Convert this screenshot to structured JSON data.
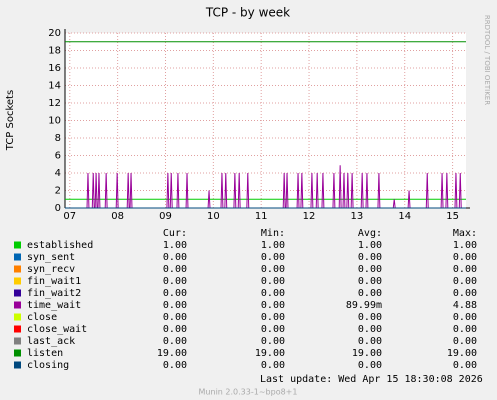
{
  "chart_data": {
    "type": "line",
    "title": "TCP - by week",
    "y_label": "TCP Sockets",
    "side_text": "RRDTOOL / TOBI OETIKER",
    "xlim": [
      6.9,
      15.28
    ],
    "ylim": [
      0,
      20
    ],
    "xticks": [
      {
        "value": 7,
        "label": "07"
      },
      {
        "value": 8,
        "label": "08"
      },
      {
        "value": 9,
        "label": "09"
      },
      {
        "value": 10,
        "label": "10"
      },
      {
        "value": 11,
        "label": "11"
      },
      {
        "value": 12,
        "label": "12"
      },
      {
        "value": 13,
        "label": "13"
      },
      {
        "value": 14,
        "label": "14"
      },
      {
        "value": 15,
        "label": "15"
      }
    ],
    "yticks": [
      0,
      2,
      4,
      6,
      8,
      10,
      12,
      14,
      16,
      18,
      20
    ],
    "grid": true,
    "series": [
      {
        "name": "established",
        "color": "#00cc00",
        "x": [
          6.9,
          15.28
        ],
        "values": [
          1,
          1
        ]
      },
      {
        "name": "syn_sent",
        "color": "#0066b3",
        "x": [
          6.9,
          15.28
        ],
        "values": [
          0,
          0
        ]
      },
      {
        "name": "syn_recv",
        "color": "#ff8000",
        "x": [
          6.9,
          15.28
        ],
        "values": [
          0,
          0
        ]
      },
      {
        "name": "fin_wait1",
        "color": "#ffcc00",
        "x": [
          6.9,
          15.28
        ],
        "values": [
          0,
          0
        ]
      },
      {
        "name": "fin_wait2",
        "color": "#330099",
        "x": [
          6.9,
          15.28
        ],
        "values": [
          0,
          0
        ]
      },
      {
        "name": "time_wait",
        "color": "#990099",
        "x": [
          6.9,
          7.36,
          7.38,
          7.4,
          7.47,
          7.49,
          7.51,
          7.53,
          7.55,
          7.57,
          7.59,
          7.61,
          7.63,
          7.74,
          7.76,
          7.78,
          7.97,
          7.99,
          8.01,
          8.2,
          8.22,
          8.24,
          8.26,
          8.28,
          8.3,
          9.03,
          9.05,
          9.07,
          9.1,
          9.12,
          9.14,
          9.24,
          9.26,
          9.28,
          9.43,
          9.45,
          9.47,
          9.89,
          9.91,
          9.93,
          10.16,
          10.18,
          10.2,
          10.24,
          10.26,
          10.28,
          10.43,
          10.45,
          10.47,
          10.52,
          10.54,
          10.56,
          10.7,
          10.72,
          10.74,
          11.46,
          11.48,
          11.5,
          11.52,
          11.54,
          11.56,
          11.75,
          11.77,
          11.79,
          11.83,
          11.85,
          11.87,
          12.04,
          12.06,
          12.08,
          12.15,
          12.17,
          12.19,
          12.27,
          12.29,
          12.31,
          12.5,
          12.52,
          12.54,
          12.63,
          12.65,
          12.67,
          12.71,
          12.73,
          12.75,
          12.79,
          12.81,
          12.83,
          12.88,
          12.9,
          12.92,
          13.09,
          13.11,
          13.13,
          13.19,
          13.21,
          13.23,
          13.44,
          13.46,
          13.48,
          13.76,
          13.78,
          13.8,
          14.07,
          14.09,
          14.11,
          14.45,
          14.47,
          14.49,
          14.76,
          14.78,
          14.8,
          14.86,
          14.88,
          14.9,
          15.05,
          15.07,
          15.09,
          15.14,
          15.16,
          15.18,
          15.28
        ],
        "values": [
          0,
          0,
          4,
          0,
          0,
          4,
          0,
          0,
          4,
          0,
          0,
          4,
          0,
          0,
          4,
          0,
          0,
          4,
          0,
          0,
          4,
          0,
          0,
          4,
          0,
          0,
          4,
          0,
          0,
          4,
          0,
          0,
          4,
          0,
          0,
          4,
          0,
          0,
          2,
          0,
          0,
          4,
          0,
          0,
          4,
          0,
          0,
          4,
          0,
          0,
          4,
          0,
          0,
          4,
          0,
          0,
          4,
          0,
          0,
          4,
          0,
          0,
          4,
          0,
          0,
          4,
          0,
          0,
          4,
          0,
          0,
          4,
          0,
          0,
          4,
          0,
          0,
          4,
          0,
          0,
          4.88,
          0,
          0,
          4,
          0,
          0,
          4,
          0,
          0,
          4,
          0,
          0,
          4,
          0,
          0,
          4,
          0,
          0,
          4,
          0,
          0,
          1,
          0,
          0,
          2,
          0,
          0,
          4,
          0,
          0,
          4,
          0,
          0,
          4,
          0,
          0,
          4,
          0,
          0,
          4,
          0,
          0
        ]
      },
      {
        "name": "close",
        "color": "#ccff00",
        "x": [
          6.9,
          15.28
        ],
        "values": [
          0,
          0
        ]
      },
      {
        "name": "close_wait",
        "color": "#ff0000",
        "x": [
          6.9,
          15.28
        ],
        "values": [
          0,
          0
        ]
      },
      {
        "name": "last_ack",
        "color": "#808080",
        "x": [
          6.9,
          15.28
        ],
        "values": [
          0,
          0
        ]
      },
      {
        "name": "listen",
        "color": "#008f00",
        "x": [
          6.9,
          15.28
        ],
        "values": [
          19,
          19
        ]
      },
      {
        "name": "closing",
        "color": "#00487d",
        "x": [
          6.9,
          15.28
        ],
        "values": [
          0,
          0
        ]
      }
    ],
    "legend_table": {
      "columns": [
        "Cur:",
        "Min:",
        "Avg:",
        "Max:"
      ],
      "rows": [
        [
          "1.00",
          "1.00",
          "1.00",
          "1.00"
        ],
        [
          "0.00",
          "0.00",
          "0.00",
          "0.00"
        ],
        [
          "0.00",
          "0.00",
          "0.00",
          "0.00"
        ],
        [
          "0.00",
          "0.00",
          "0.00",
          "0.00"
        ],
        [
          "0.00",
          "0.00",
          "0.00",
          "0.00"
        ],
        [
          "0.00",
          "0.00",
          "89.99m",
          "4.88"
        ],
        [
          "0.00",
          "0.00",
          "0.00",
          "0.00"
        ],
        [
          "0.00",
          "0.00",
          "0.00",
          "0.00"
        ],
        [
          "0.00",
          "0.00",
          "0.00",
          "0.00"
        ],
        [
          "19.00",
          "19.00",
          "19.00",
          "19.00"
        ],
        [
          "0.00",
          "0.00",
          "0.00",
          "0.00"
        ]
      ]
    },
    "last_update": "Last update: Wed Apr 15 18:30:08 2026",
    "footer": "Munin 2.0.33-1~bpo8+1"
  }
}
